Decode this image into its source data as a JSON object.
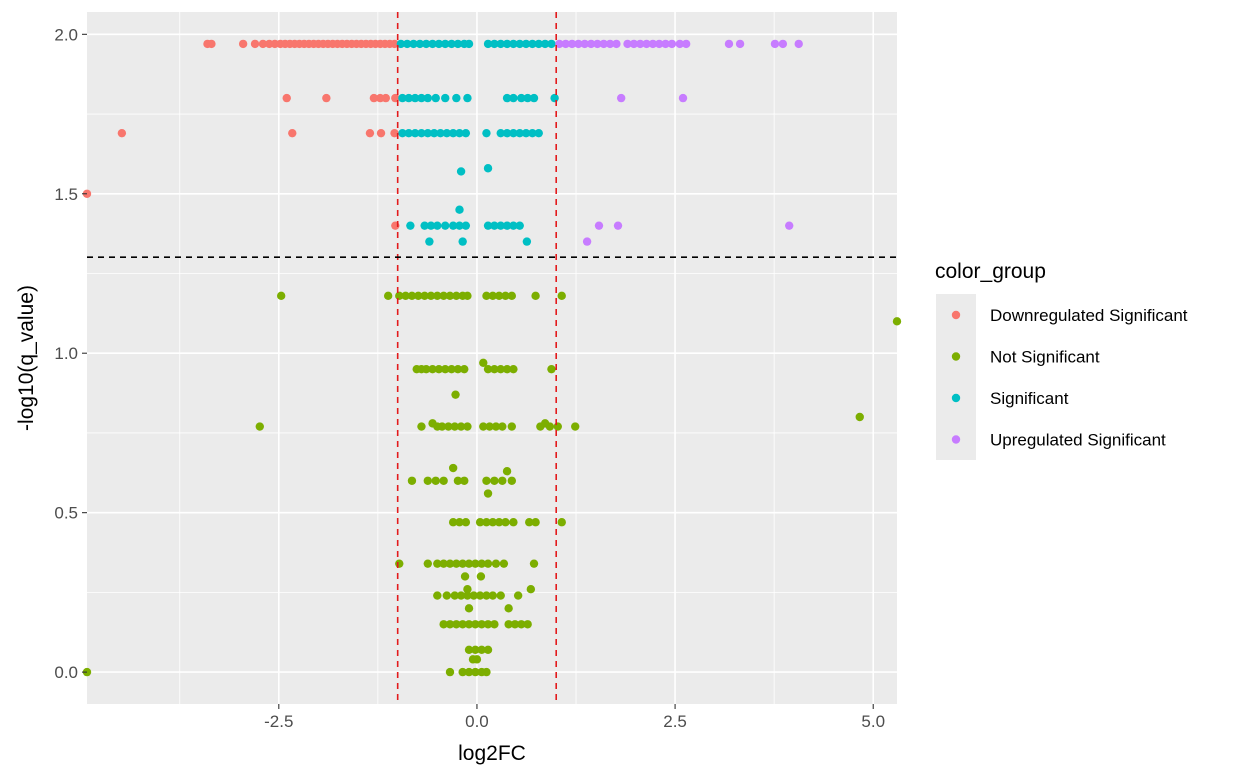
{
  "chart_data": {
    "type": "scatter",
    "xlabel": "log2FC",
    "ylabel": "-log10(q_value)",
    "xlim": [
      -4.92,
      5.3
    ],
    "ylim": [
      -0.1,
      2.07
    ],
    "x_ticks": [
      -2.5,
      0.0,
      2.5,
      5.0
    ],
    "x_tick_labels": [
      "-2.5",
      "0.0",
      "2.5",
      "5.0"
    ],
    "y_ticks": [
      0.0,
      0.5,
      1.0,
      1.5,
      2.0
    ],
    "y_tick_labels": [
      "0.0",
      "0.5",
      "1.0",
      "1.5",
      "2.0"
    ],
    "grid": true,
    "panel_background": "#ebebeb",
    "reference_lines": [
      {
        "orientation": "vertical",
        "value": -1,
        "color": "#e31a1c",
        "style": "dashed"
      },
      {
        "orientation": "vertical",
        "value": 1,
        "color": "#e31a1c",
        "style": "dashed"
      },
      {
        "orientation": "horizontal",
        "value": 1.30103,
        "color": "#000000",
        "style": "dashed"
      }
    ],
    "legend": {
      "title": "color_group",
      "position": "right",
      "entries": [
        {
          "label": "Downregulated Significant",
          "color": "#F8766D"
        },
        {
          "label": "Not Significant",
          "color": "#7CAE00"
        },
        {
          "label": "Significant",
          "color": "#00BFC4"
        },
        {
          "label": "Upregulated Significant",
          "color": "#C77CFF"
        }
      ]
    },
    "series": [
      {
        "name": "Downregulated Significant",
        "color": "#F8766D",
        "points": [
          [
            -3.4,
            1.97
          ],
          [
            -3.35,
            1.97
          ],
          [
            -2.95,
            1.97
          ],
          [
            -2.8,
            1.97
          ],
          [
            -2.7,
            1.97
          ],
          [
            -2.62,
            1.97
          ],
          [
            -2.55,
            1.97
          ],
          [
            -2.48,
            1.97
          ],
          [
            -2.42,
            1.97
          ],
          [
            -2.36,
            1.97
          ],
          [
            -2.3,
            1.97
          ],
          [
            -2.24,
            1.97
          ],
          [
            -2.18,
            1.97
          ],
          [
            -2.12,
            1.97
          ],
          [
            -2.06,
            1.97
          ],
          [
            -2.0,
            1.97
          ],
          [
            -1.94,
            1.97
          ],
          [
            -1.88,
            1.97
          ],
          [
            -1.82,
            1.97
          ],
          [
            -1.76,
            1.97
          ],
          [
            -1.7,
            1.97
          ],
          [
            -1.64,
            1.97
          ],
          [
            -1.58,
            1.97
          ],
          [
            -1.52,
            1.97
          ],
          [
            -1.46,
            1.97
          ],
          [
            -1.4,
            1.97
          ],
          [
            -1.34,
            1.97
          ],
          [
            -1.28,
            1.97
          ],
          [
            -1.22,
            1.97
          ],
          [
            -1.16,
            1.97
          ],
          [
            -1.1,
            1.97
          ],
          [
            -1.04,
            1.97
          ],
          [
            -2.4,
            1.8
          ],
          [
            -1.9,
            1.8
          ],
          [
            -1.3,
            1.8
          ],
          [
            -1.22,
            1.8
          ],
          [
            -1.15,
            1.8
          ],
          [
            -1.03,
            1.8
          ],
          [
            -4.48,
            1.69
          ],
          [
            -2.33,
            1.69
          ],
          [
            -1.35,
            1.69
          ],
          [
            -1.21,
            1.69
          ],
          [
            -1.04,
            1.69
          ],
          [
            -4.92,
            1.5
          ],
          [
            -1.03,
            1.4
          ]
        ]
      },
      {
        "name": "Not Significant",
        "color": "#7CAE00",
        "points": [
          [
            -2.47,
            1.18
          ],
          [
            -1.12,
            1.18
          ],
          [
            -0.98,
            1.18
          ],
          [
            -0.9,
            1.18
          ],
          [
            -0.82,
            1.18
          ],
          [
            -0.74,
            1.18
          ],
          [
            -0.66,
            1.18
          ],
          [
            -0.58,
            1.18
          ],
          [
            -0.5,
            1.18
          ],
          [
            -0.42,
            1.18
          ],
          [
            -0.34,
            1.18
          ],
          [
            -0.26,
            1.18
          ],
          [
            -0.18,
            1.18
          ],
          [
            -0.12,
            1.18
          ],
          [
            0.12,
            1.18
          ],
          [
            0.2,
            1.18
          ],
          [
            0.28,
            1.18
          ],
          [
            0.36,
            1.18
          ],
          [
            0.44,
            1.18
          ],
          [
            0.74,
            1.18
          ],
          [
            1.07,
            1.18
          ],
          [
            5.3,
            1.1
          ],
          [
            -0.76,
            0.95
          ],
          [
            -0.7,
            0.95
          ],
          [
            -0.64,
            0.95
          ],
          [
            -0.56,
            0.95
          ],
          [
            -0.48,
            0.95
          ],
          [
            -0.4,
            0.95
          ],
          [
            -0.32,
            0.95
          ],
          [
            -0.24,
            0.95
          ],
          [
            -0.16,
            0.95
          ],
          [
            0.08,
            0.97
          ],
          [
            0.14,
            0.95
          ],
          [
            0.22,
            0.95
          ],
          [
            0.3,
            0.95
          ],
          [
            0.38,
            0.95
          ],
          [
            0.46,
            0.95
          ],
          [
            0.94,
            0.95
          ],
          [
            -0.27,
            0.87
          ],
          [
            4.83,
            0.8
          ],
          [
            -2.74,
            0.77
          ],
          [
            -0.7,
            0.77
          ],
          [
            -0.56,
            0.78
          ],
          [
            -0.5,
            0.77
          ],
          [
            -0.44,
            0.77
          ],
          [
            -0.36,
            0.77
          ],
          [
            -0.28,
            0.77
          ],
          [
            -0.2,
            0.77
          ],
          [
            -0.12,
            0.77
          ],
          [
            0.08,
            0.77
          ],
          [
            0.16,
            0.77
          ],
          [
            0.24,
            0.77
          ],
          [
            0.32,
            0.77
          ],
          [
            0.44,
            0.77
          ],
          [
            0.8,
            0.77
          ],
          [
            0.86,
            0.78
          ],
          [
            0.92,
            0.77
          ],
          [
            1.02,
            0.77
          ],
          [
            1.24,
            0.77
          ],
          [
            -0.82,
            0.6
          ],
          [
            -0.62,
            0.6
          ],
          [
            -0.52,
            0.6
          ],
          [
            -0.42,
            0.6
          ],
          [
            -0.3,
            0.64
          ],
          [
            -0.24,
            0.6
          ],
          [
            -0.16,
            0.6
          ],
          [
            0.12,
            0.6
          ],
          [
            0.22,
            0.6
          ],
          [
            0.32,
            0.6
          ],
          [
            0.38,
            0.63
          ],
          [
            0.44,
            0.6
          ],
          [
            0.14,
            0.56
          ],
          [
            -0.3,
            0.47
          ],
          [
            -0.22,
            0.47
          ],
          [
            -0.14,
            0.47
          ],
          [
            0.04,
            0.47
          ],
          [
            0.12,
            0.47
          ],
          [
            0.2,
            0.47
          ],
          [
            0.28,
            0.47
          ],
          [
            0.36,
            0.47
          ],
          [
            0.46,
            0.47
          ],
          [
            0.66,
            0.47
          ],
          [
            0.74,
            0.47
          ],
          [
            1.07,
            0.47
          ],
          [
            -0.98,
            0.34
          ],
          [
            -0.62,
            0.34
          ],
          [
            -0.5,
            0.34
          ],
          [
            -0.42,
            0.34
          ],
          [
            -0.34,
            0.34
          ],
          [
            -0.26,
            0.34
          ],
          [
            -0.18,
            0.34
          ],
          [
            -0.1,
            0.34
          ],
          [
            -0.02,
            0.34
          ],
          [
            0.06,
            0.34
          ],
          [
            0.14,
            0.34
          ],
          [
            0.24,
            0.34
          ],
          [
            0.34,
            0.34
          ],
          [
            0.72,
            0.34
          ],
          [
            -0.15,
            0.3
          ],
          [
            0.05,
            0.3
          ],
          [
            -0.12,
            0.26
          ],
          [
            0.68,
            0.26
          ],
          [
            -0.5,
            0.24
          ],
          [
            -0.38,
            0.24
          ],
          [
            -0.28,
            0.24
          ],
          [
            -0.2,
            0.24
          ],
          [
            -0.12,
            0.24
          ],
          [
            -0.04,
            0.24
          ],
          [
            0.04,
            0.24
          ],
          [
            0.12,
            0.24
          ],
          [
            0.2,
            0.24
          ],
          [
            0.3,
            0.24
          ],
          [
            0.52,
            0.24
          ],
          [
            -0.1,
            0.2
          ],
          [
            0.4,
            0.2
          ],
          [
            -0.42,
            0.15
          ],
          [
            -0.34,
            0.15
          ],
          [
            -0.26,
            0.15
          ],
          [
            -0.18,
            0.15
          ],
          [
            -0.1,
            0.15
          ],
          [
            -0.02,
            0.15
          ],
          [
            0.06,
            0.15
          ],
          [
            0.14,
            0.15
          ],
          [
            0.22,
            0.15
          ],
          [
            0.4,
            0.15
          ],
          [
            0.48,
            0.15
          ],
          [
            0.56,
            0.15
          ],
          [
            0.64,
            0.15
          ],
          [
            -0.1,
            0.07
          ],
          [
            -0.02,
            0.07
          ],
          [
            0.06,
            0.07
          ],
          [
            0.14,
            0.07
          ],
          [
            -0.05,
            0.04
          ],
          [
            0.0,
            0.04
          ],
          [
            -0.34,
            0.0
          ],
          [
            -0.18,
            0.0
          ],
          [
            -0.1,
            0.0
          ],
          [
            -0.02,
            0.0
          ],
          [
            0.06,
            0.0
          ],
          [
            0.12,
            0.0
          ],
          [
            -4.92,
            0.0
          ]
        ]
      },
      {
        "name": "Significant",
        "color": "#00BFC4",
        "points": [
          [
            -0.96,
            1.97
          ],
          [
            -0.88,
            1.97
          ],
          [
            -0.8,
            1.97
          ],
          [
            -0.72,
            1.97
          ],
          [
            -0.64,
            1.97
          ],
          [
            -0.56,
            1.97
          ],
          [
            -0.48,
            1.97
          ],
          [
            -0.4,
            1.97
          ],
          [
            -0.32,
            1.97
          ],
          [
            -0.24,
            1.97
          ],
          [
            -0.16,
            1.97
          ],
          [
            -0.1,
            1.97
          ],
          [
            0.14,
            1.97
          ],
          [
            0.22,
            1.97
          ],
          [
            0.3,
            1.97
          ],
          [
            0.38,
            1.97
          ],
          [
            0.46,
            1.97
          ],
          [
            0.54,
            1.97
          ],
          [
            0.62,
            1.97
          ],
          [
            0.7,
            1.97
          ],
          [
            0.78,
            1.97
          ],
          [
            0.86,
            1.97
          ],
          [
            0.94,
            1.97
          ],
          [
            -0.94,
            1.8
          ],
          [
            -0.86,
            1.8
          ],
          [
            -0.78,
            1.8
          ],
          [
            -0.7,
            1.8
          ],
          [
            -0.62,
            1.8
          ],
          [
            -0.52,
            1.8
          ],
          [
            -0.4,
            1.8
          ],
          [
            -0.26,
            1.8
          ],
          [
            -0.12,
            1.8
          ],
          [
            0.38,
            1.8
          ],
          [
            0.46,
            1.8
          ],
          [
            0.56,
            1.8
          ],
          [
            0.64,
            1.8
          ],
          [
            0.72,
            1.8
          ],
          [
            0.98,
            1.8
          ],
          [
            -0.94,
            1.69
          ],
          [
            -0.86,
            1.69
          ],
          [
            -0.78,
            1.69
          ],
          [
            -0.7,
            1.69
          ],
          [
            -0.62,
            1.69
          ],
          [
            -0.54,
            1.69
          ],
          [
            -0.46,
            1.69
          ],
          [
            -0.38,
            1.69
          ],
          [
            -0.3,
            1.69
          ],
          [
            -0.22,
            1.69
          ],
          [
            -0.14,
            1.69
          ],
          [
            0.12,
            1.69
          ],
          [
            0.3,
            1.69
          ],
          [
            0.38,
            1.69
          ],
          [
            0.46,
            1.69
          ],
          [
            0.54,
            1.69
          ],
          [
            0.62,
            1.69
          ],
          [
            0.7,
            1.69
          ],
          [
            0.78,
            1.69
          ],
          [
            -0.2,
            1.57
          ],
          [
            0.14,
            1.58
          ],
          [
            -0.22,
            1.45
          ],
          [
            -0.84,
            1.4
          ],
          [
            -0.66,
            1.4
          ],
          [
            -0.58,
            1.4
          ],
          [
            -0.5,
            1.4
          ],
          [
            -0.4,
            1.4
          ],
          [
            -0.3,
            1.4
          ],
          [
            -0.22,
            1.4
          ],
          [
            -0.14,
            1.4
          ],
          [
            0.14,
            1.4
          ],
          [
            0.22,
            1.4
          ],
          [
            0.3,
            1.4
          ],
          [
            0.38,
            1.4
          ],
          [
            0.46,
            1.4
          ],
          [
            0.54,
            1.4
          ],
          [
            -0.6,
            1.35
          ],
          [
            -0.18,
            1.35
          ],
          [
            0.63,
            1.35
          ]
        ]
      },
      {
        "name": "Upregulated Significant",
        "color": "#C77CFF",
        "points": [
          [
            1.04,
            1.97
          ],
          [
            1.12,
            1.97
          ],
          [
            1.2,
            1.97
          ],
          [
            1.28,
            1.97
          ],
          [
            1.36,
            1.97
          ],
          [
            1.44,
            1.97
          ],
          [
            1.52,
            1.97
          ],
          [
            1.6,
            1.97
          ],
          [
            1.68,
            1.97
          ],
          [
            1.76,
            1.97
          ],
          [
            1.9,
            1.97
          ],
          [
            1.98,
            1.97
          ],
          [
            2.06,
            1.97
          ],
          [
            2.14,
            1.97
          ],
          [
            2.22,
            1.97
          ],
          [
            2.3,
            1.97
          ],
          [
            2.38,
            1.97
          ],
          [
            2.46,
            1.97
          ],
          [
            2.56,
            1.97
          ],
          [
            2.64,
            1.97
          ],
          [
            3.18,
            1.97
          ],
          [
            3.32,
            1.97
          ],
          [
            3.76,
            1.97
          ],
          [
            3.86,
            1.97
          ],
          [
            4.06,
            1.97
          ],
          [
            1.82,
            1.8
          ],
          [
            2.6,
            1.8
          ],
          [
            1.54,
            1.4
          ],
          [
            1.78,
            1.4
          ],
          [
            3.94,
            1.4
          ],
          [
            1.39,
            1.35
          ]
        ]
      }
    ]
  }
}
